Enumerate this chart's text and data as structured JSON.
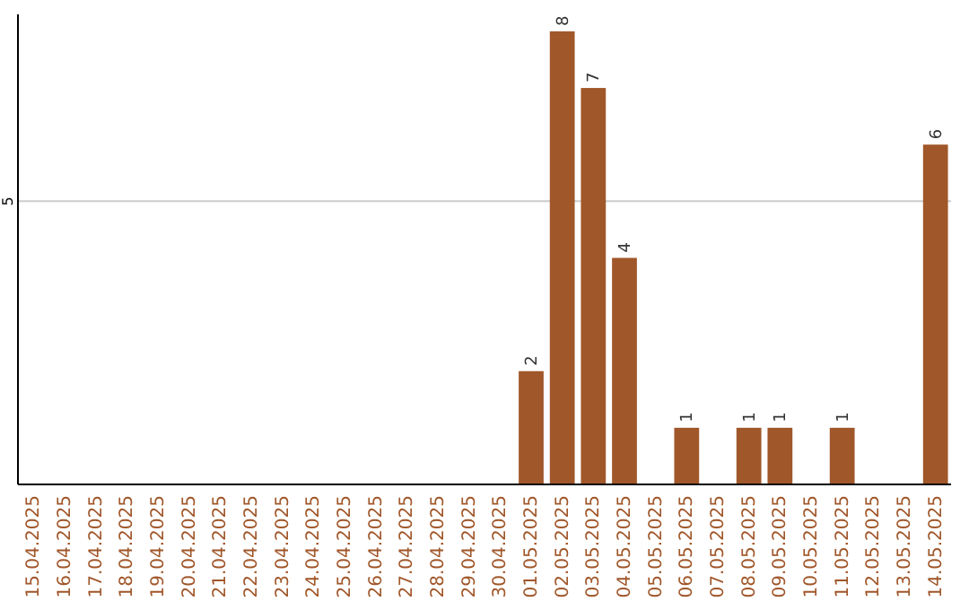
{
  "chart_data": {
    "type": "bar",
    "categories": [
      "15.04.2025",
      "16.04.2025",
      "17.04.2025",
      "18.04.2025",
      "19.04.2025",
      "20.04.2025",
      "21.04.2025",
      "22.04.2025",
      "23.04.2025",
      "24.04.2025",
      "25.04.2025",
      "26.04.2025",
      "27.04.2025",
      "28.04.2025",
      "29.04.2025",
      "30.04.2025",
      "01.05.2025",
      "02.05.2025",
      "03.05.2025",
      "04.05.2025",
      "05.05.2025",
      "06.05.2025",
      "07.05.2025",
      "08.05.2025",
      "09.05.2025",
      "10.05.2025",
      "11.05.2025",
      "12.05.2025",
      "13.05.2025",
      "14.05.2025"
    ],
    "values": [
      null,
      null,
      null,
      null,
      null,
      null,
      null,
      null,
      null,
      null,
      null,
      null,
      null,
      null,
      null,
      null,
      2,
      8,
      7,
      4,
      null,
      1,
      null,
      1,
      1,
      null,
      1,
      null,
      null,
      6
    ],
    "color": "#a0572a",
    "ylim": [
      0,
      8.3
    ],
    "yticks": [
      5
    ],
    "grid": "y",
    "data_labels": true
  }
}
